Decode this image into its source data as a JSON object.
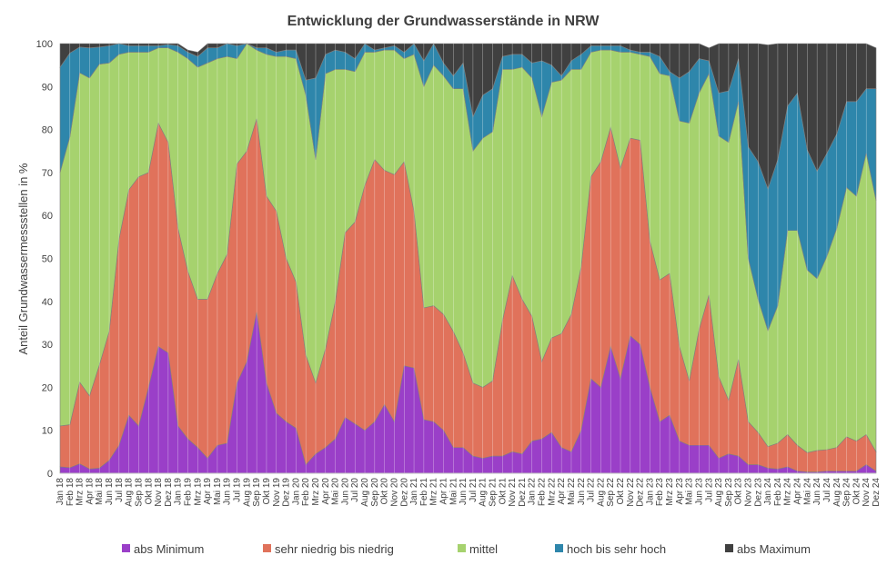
{
  "chart_data": {
    "type": "area",
    "stacked": true,
    "title": "Entwicklung der Grundwasserstände in NRW",
    "xlabel": "",
    "ylabel": "Anteil Grundwassermessstellen in %",
    "ylim": [
      0,
      100
    ],
    "yticks": [
      0,
      10,
      20,
      30,
      40,
      50,
      60,
      70,
      80,
      90,
      100
    ],
    "grid": false,
    "legend": "bottom",
    "categories": [
      "Jan 18",
      "Feb 18",
      "Mrz 18",
      "Apr 18",
      "Mai 18",
      "Jun 18",
      "Jul 18",
      "Aug 18",
      "Sep 18",
      "Okt 18",
      "Nov 18",
      "Dez 18",
      "Jan 19",
      "Feb 19",
      "Mrz 19",
      "Apr 19",
      "Mai 19",
      "Jun 19",
      "Jul 19",
      "Aug 19",
      "Sep 19",
      "Okt 19",
      "Nov 19",
      "Dez 19",
      "Jan 20",
      "Feb 20",
      "Mrz 20",
      "Apr 20",
      "Mai 20",
      "Jun 20",
      "Jul 20",
      "Aug 20",
      "Sep 20",
      "Okt 20",
      "Nov 20",
      "Dez 20",
      "Jan 21",
      "Feb 21",
      "Mrz 21",
      "Apr 21",
      "Mai 21",
      "Jun 21",
      "Jul 21",
      "Aug 21",
      "Sep 21",
      "Okt 21",
      "Nov 21",
      "Dez 21",
      "Jan 22",
      "Feb 22",
      "Mrz 22",
      "Apr 22",
      "Mai 22",
      "Jun 22",
      "Jul 22",
      "Aug 22",
      "Sep 22",
      "Okt 22",
      "Nov 22",
      "Dez 22",
      "Jan 23",
      "Feb 23",
      "Mrz 23",
      "Apr 23",
      "Mai 23",
      "Jun 23",
      "Jul 23",
      "Aug 23",
      "Sep 23",
      "Okt 23",
      "Nov 23",
      "Dez 23",
      "Jan 24",
      "Feb 24",
      "Mrz 24",
      "Apr 24",
      "Mai 24",
      "Jun 24",
      "Jul 24",
      "Aug 24",
      "Sep 24",
      "Okt 24",
      "Nov 24",
      "Dez 24"
    ],
    "series": [
      {
        "name": "abs Minimum",
        "color": "#9a3fc8",
        "values": [
          1.5,
          1.3,
          2.2,
          1,
          1.2,
          3,
          6.5,
          13.5,
          11,
          20,
          29.5,
          28,
          11,
          8,
          6,
          3.5,
          6.5,
          7,
          21,
          26,
          37.5,
          21,
          14,
          12,
          10.5,
          2,
          4.5,
          6,
          8,
          13,
          11.5,
          10,
          12,
          16,
          12,
          25,
          24.5,
          12.5,
          12,
          10,
          6,
          6,
          4,
          3.5,
          4,
          4,
          5,
          4.5,
          7.5,
          8,
          9.5,
          6,
          5,
          10,
          22,
          20,
          29.5,
          22,
          32,
          30,
          20,
          12,
          13.5,
          7.5,
          6.5,
          6.5,
          6.5,
          3.5,
          4.5,
          4,
          2,
          2,
          1.2,
          1,
          1.5,
          0.5,
          0.3,
          0.3,
          0.5,
          0.5,
          0.5,
          0.5,
          2,
          0.5
        ]
      },
      {
        "name": "sehr niedrig bis niedrig",
        "color": "#e0725b",
        "values": [
          9.5,
          10,
          19,
          17,
          24,
          30,
          48,
          52.5,
          58,
          50,
          52,
          49,
          46,
          39,
          34.5,
          37,
          40,
          44,
          51,
          49,
          45,
          43.5,
          47,
          38,
          34,
          25.5,
          16.5,
          23,
          32,
          43,
          47,
          57,
          61,
          54.5,
          57.5,
          47.5,
          36.5,
          26,
          27,
          27,
          27,
          22,
          17,
          16.5,
          17.5,
          31.5,
          41,
          36,
          29,
          18,
          22,
          26.5,
          32,
          38,
          47,
          52.5,
          51,
          49,
          46,
          47.5,
          34,
          33,
          33,
          22,
          15,
          27,
          35,
          19,
          12.5,
          22.5,
          10,
          7.5,
          5,
          6,
          7.5,
          6,
          4.5,
          5,
          5,
          5.5,
          8,
          7,
          7,
          4.5
        ]
      },
      {
        "name": "mittel",
        "color": "#a6d26e",
        "values": [
          59,
          67,
          72,
          74,
          70,
          62.5,
          43,
          32,
          29,
          28,
          17.5,
          22,
          41,
          49.5,
          54,
          55,
          50,
          46,
          24.5,
          25,
          16,
          33,
          36,
          47,
          52,
          60.5,
          52,
          64,
          54,
          38,
          35,
          31,
          25,
          28,
          29,
          24,
          36.5,
          51.5,
          56,
          55.5,
          56.5,
          61.5,
          54,
          58,
          58,
          58.5,
          48,
          54,
          55.5,
          57,
          59.5,
          59,
          57,
          46,
          29,
          26,
          18,
          27,
          20,
          20,
          43,
          48,
          46,
          52.5,
          60,
          55,
          51.5,
          56,
          60,
          60,
          38,
          31,
          27,
          32,
          47.5,
          50,
          42.5,
          40,
          45,
          51,
          58,
          57,
          65.5,
          58.5
        ]
      },
      {
        "name": "hoch bis sehr hoch",
        "color": "#2e86ab",
        "values": [
          24.5,
          19.5,
          6,
          7,
          4,
          4,
          2.5,
          1.5,
          1.5,
          1.5,
          0.5,
          0.8,
          1.5,
          1.5,
          2.5,
          3.5,
          2.5,
          3,
          3,
          0.5,
          0.5,
          1.5,
          1,
          1.5,
          2,
          3.5,
          19,
          4.5,
          4.5,
          4,
          3,
          2,
          0.5,
          0.5,
          1,
          1.5,
          3,
          6,
          5,
          3,
          3,
          6,
          8,
          10,
          10,
          3,
          3.5,
          3,
          3.5,
          13,
          4,
          1,
          2,
          3.5,
          1.5,
          1,
          1,
          1.5,
          0.5,
          0.5,
          1,
          4,
          1,
          10,
          12,
          8,
          3,
          10,
          12,
          10,
          26,
          32,
          33,
          34,
          29,
          32,
          28,
          25,
          24,
          22,
          20,
          22,
          15,
          26
        ]
      },
      {
        "name": "abs Maximum",
        "color": "#404040",
        "values": [
          5.5,
          2.2,
          0.8,
          1,
          0.8,
          0.5,
          0.5,
          0.5,
          0.5,
          0.5,
          0.5,
          0.2,
          0.5,
          0.5,
          1,
          1,
          1,
          0,
          0.5,
          0,
          1,
          1,
          2,
          1.5,
          1.5,
          8.5,
          8,
          2.5,
          1.5,
          2,
          3.5,
          0,
          1.5,
          1,
          0.5,
          2,
          0,
          4,
          0,
          4.5,
          7.5,
          4.5,
          17,
          12,
          10.5,
          3.5,
          2.5,
          2.5,
          4.5,
          4,
          5,
          8,
          4,
          2.5,
          0.5,
          0.5,
          0.5,
          0.5,
          1.5,
          2,
          2,
          3,
          6.5,
          8,
          6.5,
          3.5,
          3,
          11.5,
          11,
          3.5,
          24,
          27.5,
          33.5,
          27,
          14.5,
          11.5,
          24.8,
          29.7,
          25.5,
          21,
          13.5,
          13.5,
          10.5,
          9.5
        ]
      }
    ]
  }
}
